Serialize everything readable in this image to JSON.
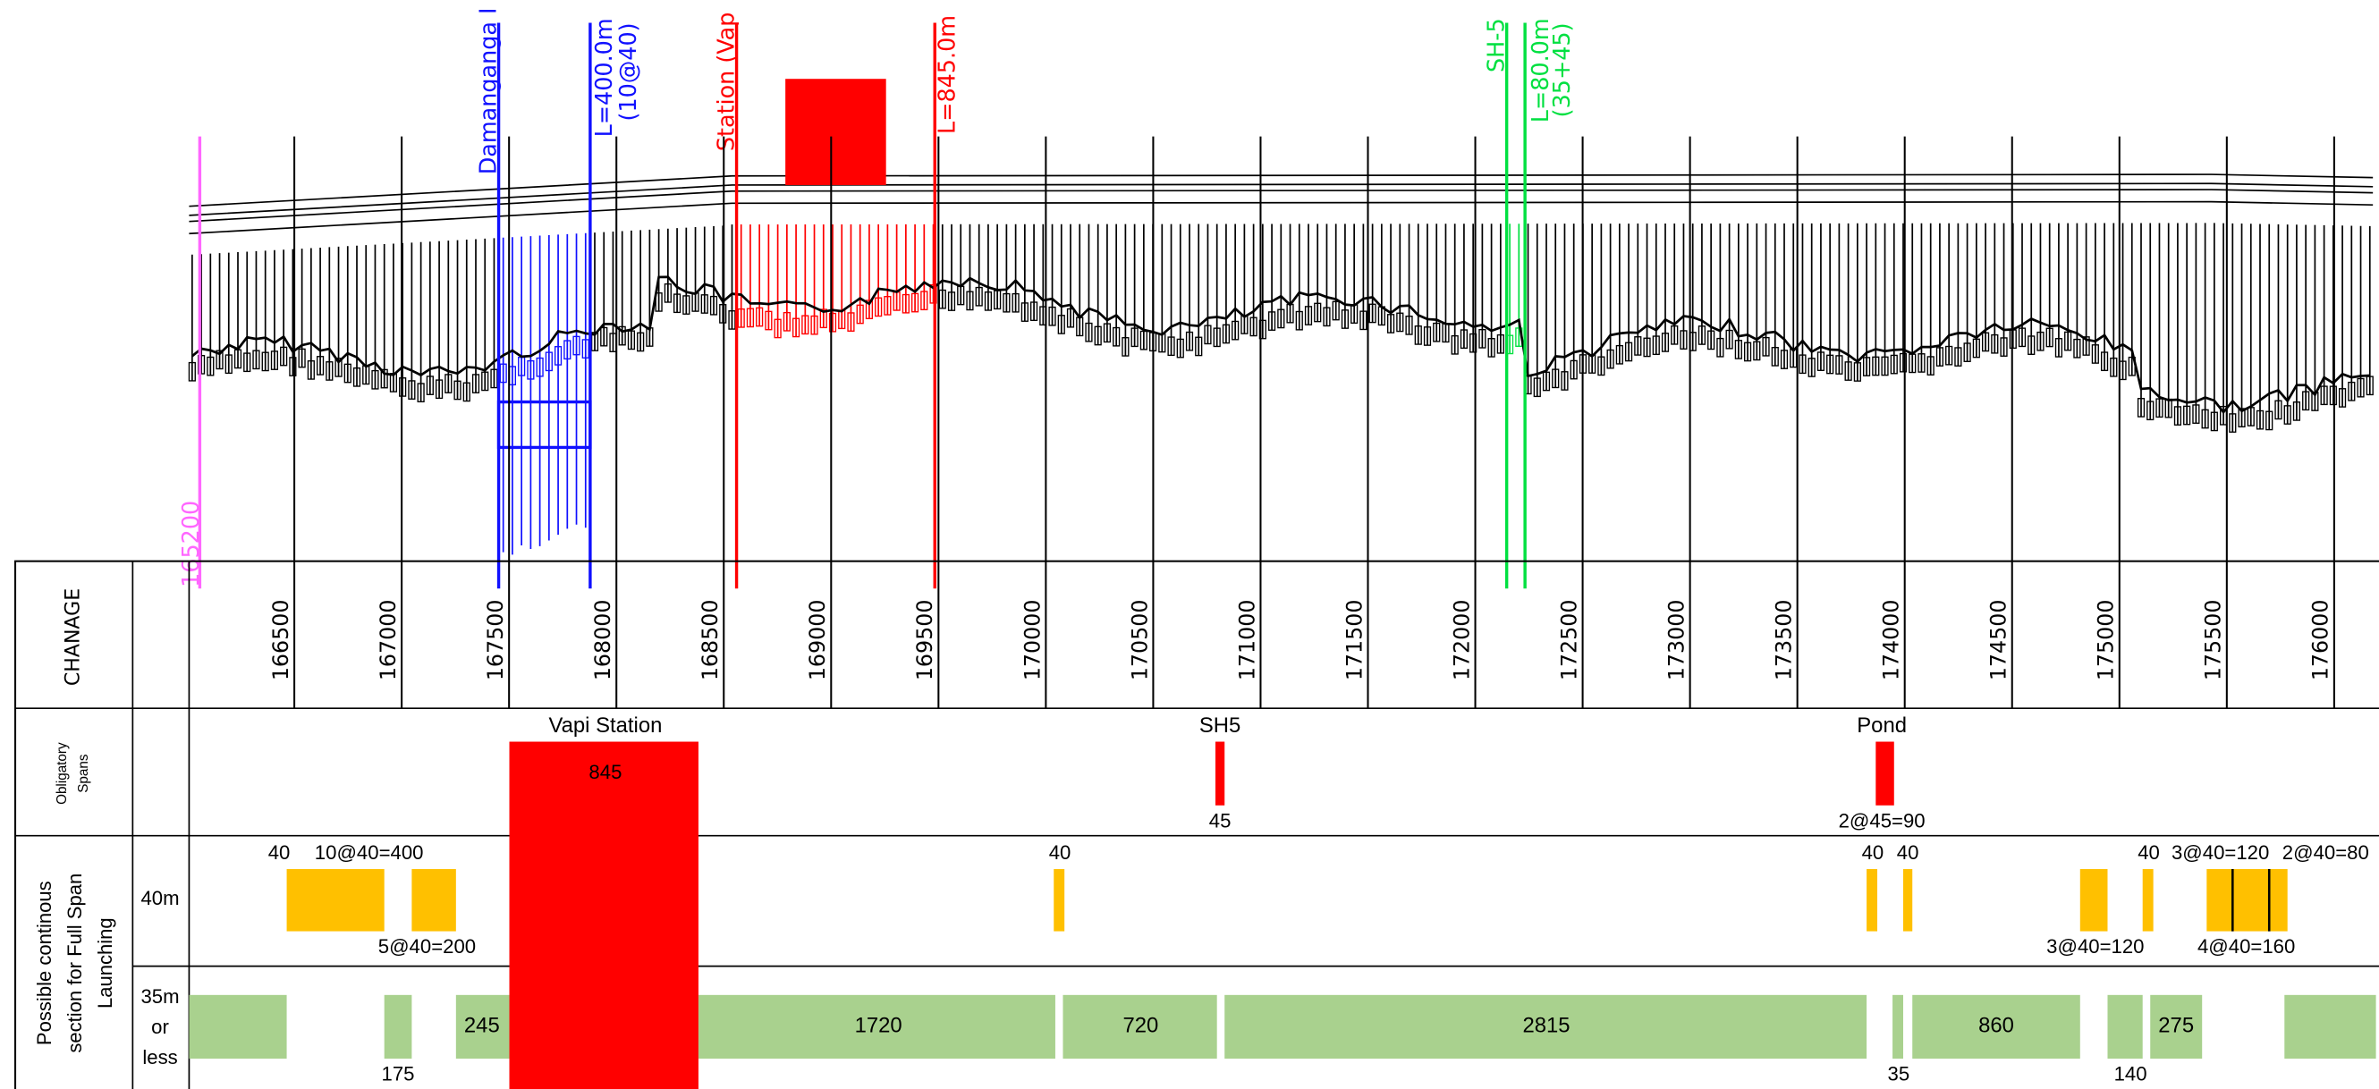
{
  "profile_labels": {
    "bridge": "Damanganga I",
    "bridge_length": "L=400.0m",
    "bridge_spans": "(10@40)",
    "station": "Station (Vap",
    "station_length": "L=845.0m",
    "road": "SH-5",
    "road_length": "L=80.0m",
    "road_spans": "(35+45)",
    "start_chainage": "165200"
  },
  "table": {
    "headers": {
      "chainage": "CHANAGE",
      "obligatory": [
        "Obligatory",
        "Spans"
      ],
      "possible": [
        "Possible continous",
        "section for Full Span",
        "Launching"
      ],
      "row_40m": "40m",
      "row_35m": [
        "35m",
        "or",
        "less"
      ]
    },
    "chainages": [
      "166500",
      "167000",
      "167500",
      "168000",
      "168500",
      "169000",
      "169500",
      "170000",
      "170500",
      "171000",
      "171500",
      "172000",
      "172500",
      "173000",
      "173500",
      "174000",
      "174500",
      "175000",
      "175500",
      "176000"
    ],
    "obligatory": [
      {
        "name": "Vapi Station",
        "span": "845"
      },
      {
        "name": "SH5",
        "span": "45"
      },
      {
        "name": "Pond",
        "span": "2@45=90"
      }
    ],
    "spans_40m_above": [
      "40",
      "10@40=400",
      "40",
      "40",
      "40",
      "40",
      "3@40=120",
      "2@40=80"
    ],
    "spans_40m_below": [
      "5@40=200",
      "3@40=120",
      "4@40=160"
    ],
    "spans_35m_inside": [
      "245",
      "1720",
      "720",
      "2815",
      "860",
      "275"
    ],
    "spans_35m_below": [
      "175",
      "35",
      "140"
    ]
  }
}
